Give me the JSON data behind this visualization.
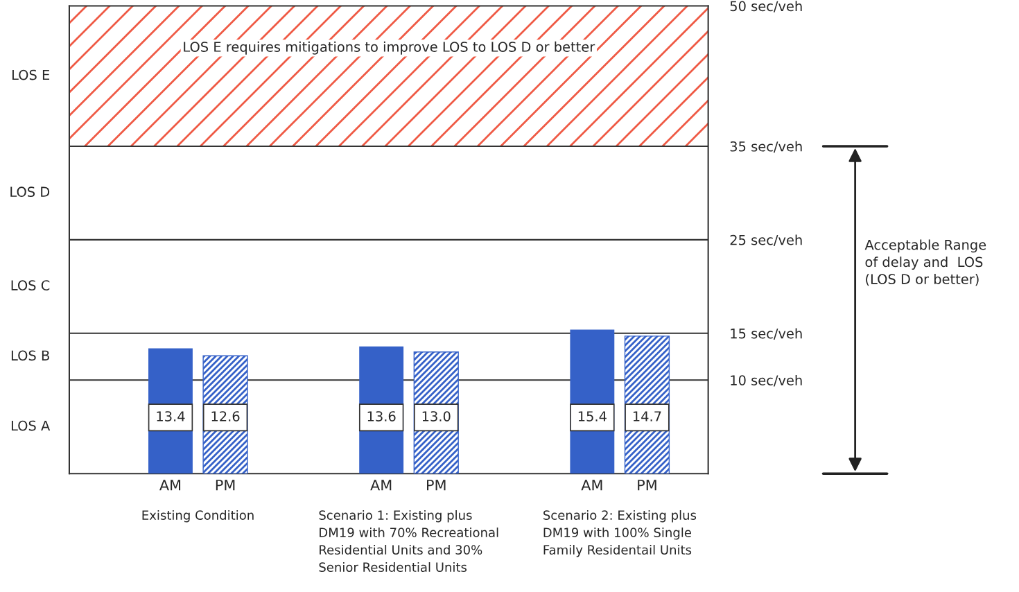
{
  "chart_data": {
    "type": "bar",
    "categories": [
      "Existing Condition",
      "Scenario 1: Existing plus DM19 with 70% Recreational Residential Units and 30% Senior Residential Units",
      "Scenario 2: Existing plus DM19 with 100% Single Family Residentail Units"
    ],
    "series": [
      {
        "name": "AM",
        "color": "#3561c8",
        "values": [
          13.4,
          13.6,
          15.4
        ]
      },
      {
        "name": "PM",
        "color": "#3561c8",
        "values": [
          12.6,
          13.0,
          14.7
        ]
      }
    ],
    "value_labels": [
      [
        "13.4",
        "13.6",
        "15.4"
      ],
      [
        "12.6",
        "13.0",
        "14.7"
      ]
    ],
    "ylim": [
      0,
      50
    ],
    "yticks": [
      {
        "value": 10,
        "label": "10 sec/veh"
      },
      {
        "value": 15,
        "label": "15 sec/veh"
      },
      {
        "value": 25,
        "label": "25 sec/veh"
      },
      {
        "value": 35,
        "label": "35 sec/veh"
      },
      {
        "value": 50,
        "label": "50 sec/veh"
      }
    ],
    "ref_lines": [
      {
        "axis": "y",
        "value": 10
      },
      {
        "axis": "y",
        "value": 15
      },
      {
        "axis": "y",
        "value": 25
      },
      {
        "axis": "y",
        "value": 35
      }
    ],
    "bands": [
      {
        "axis": "y",
        "from": 35,
        "to": 50,
        "label": "LOS E requires mitigations to improve LOS to LOS D or better",
        "color": "#ef5a45"
      }
    ],
    "annotations": [
      "LOS A",
      "LOS B",
      "LOS C",
      "LOS D",
      "LOS E",
      "Acceptable Range of delay and  LOS (LOS D or better)"
    ]
  }
}
